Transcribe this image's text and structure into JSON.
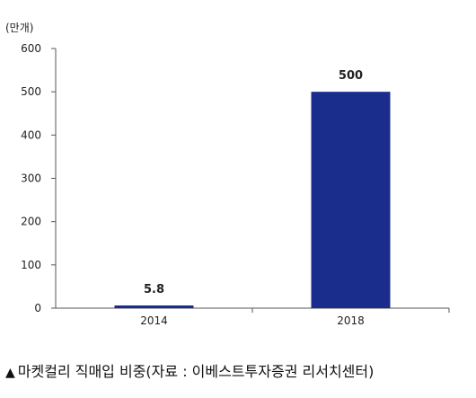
{
  "chart_data": {
    "type": "bar",
    "unit_label": "(만개)",
    "categories": [
      "2014",
      "2018"
    ],
    "values": [
      5.8,
      500
    ],
    "data_labels": [
      "5.8",
      "500"
    ],
    "ylim": [
      0,
      600
    ],
    "yticks": [
      0,
      100,
      200,
      300,
      400,
      500,
      600
    ],
    "grid": false,
    "bar_color": "#1a2c8c"
  },
  "caption": {
    "marker": "▲",
    "text": "마켓컬리 직매입 비중(자료 : 이베스트투자증권 리서치센터)"
  }
}
